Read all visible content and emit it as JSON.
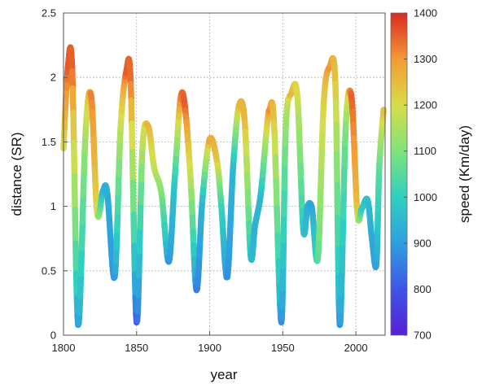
{
  "chart_data": {
    "type": "line",
    "xlabel": "year",
    "ylabel": "distance (SR)",
    "xlim": [
      1800,
      2020
    ],
    "ylim": [
      0,
      2.5
    ],
    "xticks": [
      1800,
      1850,
      1900,
      1950,
      2000
    ],
    "xtick_labels": [
      "1800",
      "1850",
      "1900",
      "1950",
      "2000"
    ],
    "yticks": [
      0,
      0.5,
      1,
      1.5,
      2,
      2.5
    ],
    "ytick_labels": [
      "0",
      "0.5",
      "1",
      "1.5",
      "2",
      "2.5"
    ],
    "grid": true,
    "color_scale": {
      "label": "speed (Km/day)",
      "range": [
        700,
        1400
      ],
      "ticks": [
        700,
        800,
        900,
        1000,
        1100,
        1200,
        1300,
        1400
      ],
      "tick_labels": [
        "700",
        "800",
        "900",
        "1000",
        "1100",
        "1200",
        "1300",
        "1400"
      ],
      "colormap": [
        "#5a1fd6",
        "#3d55e8",
        "#2f9fe0",
        "#2fd0c0",
        "#7fe37a",
        "#d8dd4a",
        "#f39a35",
        "#d92a22"
      ]
    },
    "series": [
      {
        "x": [
          1800.0,
          1803.0,
          1806.0,
          1810.0,
          1815.0,
          1819.0,
          1823.0,
          1827.0,
          1830.0,
          1835.0,
          1839.0,
          1843.0,
          1846.0,
          1850.0,
          1854.0,
          1858.0,
          1862.0,
          1867.0,
          1872.0,
          1876.0,
          1880.0,
          1883.0,
          1887.0,
          1891.0,
          1895.0,
          1900.0,
          1905.0,
          1908.0,
          1912.0,
          1916.0,
          1920.0,
          1924.0,
          1928.0,
          1931.0,
          1935.0,
          1939.0,
          1941.0,
          1944.0,
          1949.0,
          1952.0,
          1956.0,
          1960.0,
          1964.0,
          1967.0,
          1970.0,
          1974.0,
          1978.0,
          1982.0,
          1986.0,
          1989.0,
          1993.0,
          1997.0,
          2001.0,
          2004.0,
          2008.0,
          2011.0,
          2014.0,
          2016.0,
          2019.0
        ],
        "y": [
          1.45,
          2.08,
          2.05,
          0.08,
          1.55,
          1.85,
          0.95,
          1.12,
          1.1,
          0.45,
          1.6,
          2.05,
          1.95,
          0.1,
          1.45,
          1.62,
          1.3,
          1.1,
          0.57,
          1.2,
          1.83,
          1.78,
          1.2,
          0.35,
          1.05,
          1.52,
          1.35,
          1.0,
          0.45,
          1.3,
          1.78,
          1.65,
          0.62,
          0.85,
          1.1,
          1.6,
          1.75,
          1.65,
          0.1,
          1.6,
          1.88,
          1.85,
          0.82,
          1.0,
          0.98,
          0.6,
          1.8,
          2.08,
          1.95,
          0.08,
          1.6,
          1.85,
          0.95,
          0.98,
          1.05,
          0.75,
          0.55,
          1.3,
          1.75
        ],
        "speed": [
          1180,
          1360,
          1350,
          880,
          1150,
          1330,
          1200,
          940,
          930,
          880,
          1170,
          1360,
          1340,
          780,
          1160,
          1270,
          1180,
          1110,
          880,
          980,
          1320,
          1360,
          1170,
          840,
          950,
          1290,
          1240,
          1020,
          870,
          950,
          1260,
          1260,
          970,
          930,
          950,
          1200,
          1320,
          1240,
          860,
          1120,
          1260,
          1200,
          980,
          930,
          910,
          1050,
          1220,
          1310,
          1240,
          870,
          1100,
          1360,
          1230,
          990,
          970,
          920,
          900,
          1060,
          1250
        ]
      }
    ]
  }
}
